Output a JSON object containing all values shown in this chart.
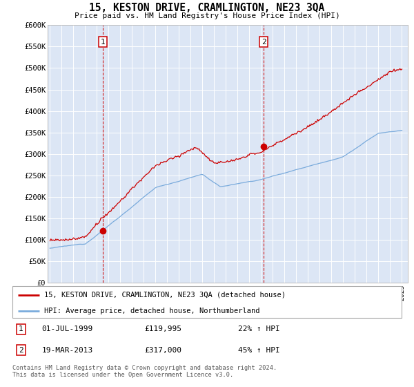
{
  "title": "15, KESTON DRIVE, CRAMLINGTON, NE23 3QA",
  "subtitle": "Price paid vs. HM Land Registry's House Price Index (HPI)",
  "ylim": [
    0,
    600000
  ],
  "yticks": [
    0,
    50000,
    100000,
    150000,
    200000,
    250000,
    300000,
    350000,
    400000,
    450000,
    500000,
    550000,
    600000
  ],
  "ytick_labels": [
    "£0",
    "£50K",
    "£100K",
    "£150K",
    "£200K",
    "£250K",
    "£300K",
    "£350K",
    "£400K",
    "£450K",
    "£500K",
    "£550K",
    "£600K"
  ],
  "bg_color": "#dce6f5",
  "red_color": "#cc0000",
  "blue_color": "#7aabdc",
  "legend_red_label": "15, KESTON DRIVE, CRAMLINGTON, NE23 3QA (detached house)",
  "legend_blue_label": "HPI: Average price, detached house, Northumberland",
  "ann1_label": "1",
  "ann1_date": "01-JUL-1999",
  "ann1_price": "£119,995",
  "ann1_hpi": "22% ↑ HPI",
  "ann2_label": "2",
  "ann2_date": "19-MAR-2013",
  "ann2_price": "£317,000",
  "ann2_hpi": "45% ↑ HPI",
  "footer": "Contains HM Land Registry data © Crown copyright and database right 2024.\nThis data is licensed under the Open Government Licence v3.0.",
  "sale1_x": 1999.5,
  "sale1_y": 119995,
  "sale2_x": 2013.21,
  "sale2_y": 317000,
  "xmin": 1994.8,
  "xmax": 2025.5
}
